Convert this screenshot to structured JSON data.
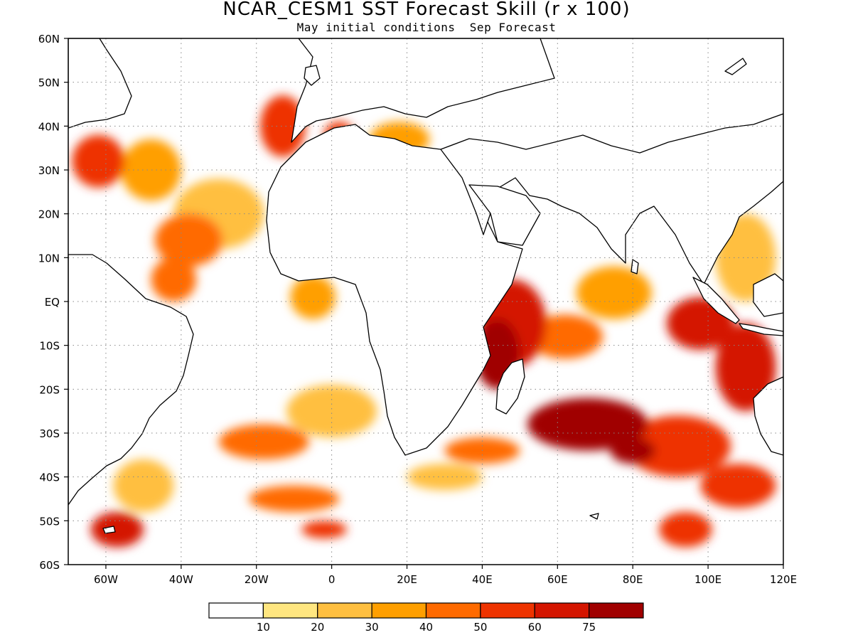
{
  "title": "NCAR_CESM1 SST Forecast Skill (r x 100)",
  "subtitle": "May initial conditions  Sep Forecast",
  "map": {
    "lon_range": [
      -70,
      120
    ],
    "lat_range": [
      -60,
      60
    ],
    "grid": "dotted",
    "x_ticks": [
      {
        "value": -60,
        "label": "60W"
      },
      {
        "value": -40,
        "label": "40W"
      },
      {
        "value": -20,
        "label": "20W"
      },
      {
        "value": 0,
        "label": "0"
      },
      {
        "value": 20,
        "label": "20E"
      },
      {
        "value": 40,
        "label": "40E"
      },
      {
        "value": 60,
        "label": "60E"
      },
      {
        "value": 80,
        "label": "80E"
      },
      {
        "value": 100,
        "label": "100E"
      },
      {
        "value": 120,
        "label": "120E"
      }
    ],
    "y_ticks": [
      {
        "value": 60,
        "label": "60N"
      },
      {
        "value": 50,
        "label": "50N"
      },
      {
        "value": 40,
        "label": "40N"
      },
      {
        "value": 30,
        "label": "30N"
      },
      {
        "value": 20,
        "label": "20N"
      },
      {
        "value": 10,
        "label": "10N"
      },
      {
        "value": 0,
        "label": "EQ"
      },
      {
        "value": -10,
        "label": "10S"
      },
      {
        "value": -20,
        "label": "20S"
      },
      {
        "value": -30,
        "label": "30S"
      },
      {
        "value": -40,
        "label": "40S"
      },
      {
        "value": -50,
        "label": "50S"
      },
      {
        "value": -60,
        "label": "60S"
      }
    ]
  },
  "colorbar": {
    "colors": [
      "#ffffff",
      "#ffe680",
      "#ffbf40",
      "#ff9f00",
      "#ff6a00",
      "#ee3300",
      "#d41500",
      "#a00000"
    ],
    "labels": [
      "10",
      "20",
      "30",
      "40",
      "50",
      "60",
      "75"
    ]
  },
  "skill_regions": [
    {
      "lon": 48,
      "lat": -5,
      "rx": 9,
      "ry": 10,
      "level": 6
    },
    {
      "lon": 44,
      "lat": -12,
      "rx": 6,
      "ry": 8,
      "level": 7
    },
    {
      "lon": 62,
      "lat": -8,
      "rx": 10,
      "ry": 5,
      "level": 4
    },
    {
      "lon": 75,
      "lat": 2,
      "rx": 10,
      "ry": 6,
      "level": 3
    },
    {
      "lon": 68,
      "lat": -28,
      "rx": 16,
      "ry": 6,
      "level": 7
    },
    {
      "lon": 80,
      "lat": -34,
      "rx": 6,
      "ry": 3,
      "level": 7
    },
    {
      "lon": 92,
      "lat": -33,
      "rx": 14,
      "ry": 7,
      "level": 5
    },
    {
      "lon": 98,
      "lat": -5,
      "rx": 9,
      "ry": 6,
      "level": 6
    },
    {
      "lon": 110,
      "lat": -15,
      "rx": 8,
      "ry": 10,
      "level": 6
    },
    {
      "lon": 108,
      "lat": -42,
      "rx": 10,
      "ry": 5,
      "level": 5
    },
    {
      "lon": 94,
      "lat": -52,
      "rx": 7,
      "ry": 4,
      "level": 5
    },
    {
      "lon": -13,
      "lat": 40,
      "rx": 6,
      "ry": 7,
      "level": 5
    },
    {
      "lon": -62,
      "lat": 32,
      "rx": 7,
      "ry": 6,
      "level": 5
    },
    {
      "lon": -48,
      "lat": 30,
      "rx": 8,
      "ry": 7,
      "level": 3
    },
    {
      "lon": -38,
      "lat": 14,
      "rx": 9,
      "ry": 6,
      "level": 4
    },
    {
      "lon": -42,
      "lat": 5,
      "rx": 6,
      "ry": 5,
      "level": 4
    },
    {
      "lon": -30,
      "lat": 20,
      "rx": 12,
      "ry": 8,
      "level": 2
    },
    {
      "lon": 2,
      "lat": 38,
      "rx": 4,
      "ry": 3,
      "level": 5
    },
    {
      "lon": 18,
      "lat": 37,
      "rx": 8,
      "ry": 4,
      "level": 3
    },
    {
      "lon": -5,
      "lat": 1,
      "rx": 6,
      "ry": 5,
      "level": 3
    },
    {
      "lon": -18,
      "lat": -32,
      "rx": 12,
      "ry": 4,
      "level": 4
    },
    {
      "lon": 0,
      "lat": -25,
      "rx": 12,
      "ry": 6,
      "level": 2
    },
    {
      "lon": -10,
      "lat": -45,
      "rx": 12,
      "ry": 3,
      "level": 4
    },
    {
      "lon": -2,
      "lat": -52,
      "rx": 6,
      "ry": 2,
      "level": 5
    },
    {
      "lon": -57,
      "lat": -52,
      "rx": 7,
      "ry": 4,
      "level": 6
    },
    {
      "lon": -50,
      "lat": -42,
      "rx": 8,
      "ry": 6,
      "level": 2
    },
    {
      "lon": 40,
      "lat": -34,
      "rx": 10,
      "ry": 3,
      "level": 4
    },
    {
      "lon": 110,
      "lat": 10,
      "rx": 8,
      "ry": 10,
      "level": 2
    },
    {
      "lon": 30,
      "lat": -40,
      "rx": 10,
      "ry": 3,
      "level": 2
    }
  ]
}
